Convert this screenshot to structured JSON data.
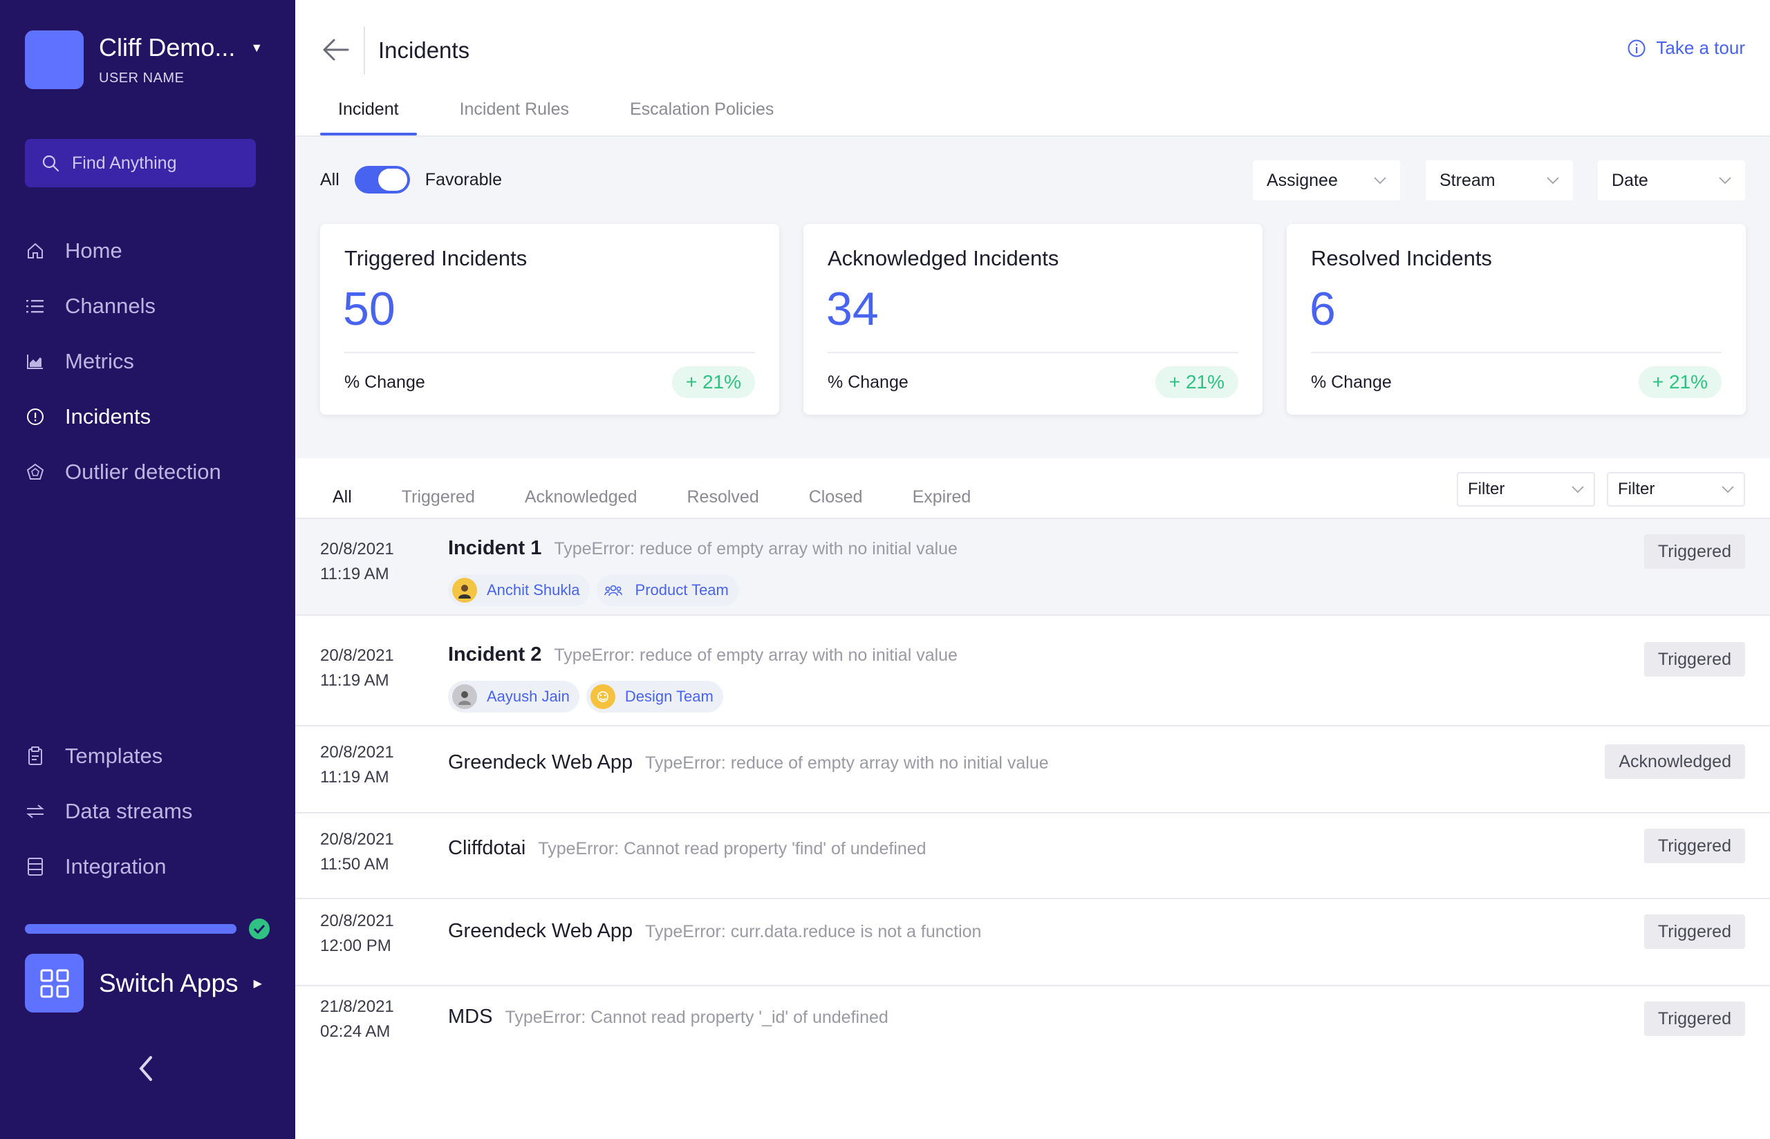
{
  "sidebar": {
    "workspace_name": "Cliff Demo...",
    "workspace_sub": "USER NAME",
    "search_label": "Find Anything",
    "nav_top": [
      {
        "label": "Home",
        "icon": "home-icon"
      },
      {
        "label": "Channels",
        "icon": "list-icon"
      },
      {
        "label": "Metrics",
        "icon": "chart-icon"
      },
      {
        "label": "Incidents",
        "icon": "alert-circle-icon",
        "active": true
      },
      {
        "label": "Outlier detection",
        "icon": "outlier-icon"
      }
    ],
    "nav_bottom": [
      {
        "label": "Templates",
        "icon": "template-icon"
      },
      {
        "label": "Data streams",
        "icon": "streams-icon"
      },
      {
        "label": "Integration",
        "icon": "integration-icon"
      }
    ],
    "setup_progress": 1.0,
    "switch_apps_label": "Switch Apps"
  },
  "header": {
    "title": "Incidents",
    "tour_label": "Take a tour",
    "tabs": [
      "Incident",
      "Incident Rules",
      "Escalation Policies"
    ],
    "active_tab": "Incident"
  },
  "filters": {
    "toggle_left": "All",
    "toggle_right": "Favorable",
    "toggle_on": true,
    "assignee": "Assignee",
    "stream": "Stream",
    "date": "Date"
  },
  "stats": [
    {
      "title": "Triggered Incidents",
      "value": "50",
      "change_label": "% Change",
      "change": "+ 21%"
    },
    {
      "title": "Acknowledged Incidents",
      "value": "34",
      "change_label": "% Change",
      "change": "+ 21%"
    },
    {
      "title": "Resolved Incidents",
      "value": "6",
      "change_label": "% Change",
      "change": "+ 21%"
    }
  ],
  "list": {
    "tabs": [
      "All",
      "Triggered",
      "Acknowledged",
      "Resolved",
      "Closed",
      "Expired"
    ],
    "active_tab": "All",
    "filter1": "Filter",
    "filter2": "Filter",
    "rows": [
      {
        "date": "20/8/2021",
        "time": "11:19 AM",
        "name": "Incident 1",
        "desc": "TypeError: reduce of empty array with no initial value",
        "status": "Triggered",
        "person": "Anchit Shukla",
        "team": "Product Team"
      },
      {
        "date": "20/8/2021",
        "time": "11:19 AM",
        "name": "Incident 2",
        "desc": "TypeError: reduce of empty array with no initial value",
        "status": "Triggered",
        "person": "Aayush Jain",
        "team": "Design Team"
      },
      {
        "date": "20/8/2021",
        "time": "11:19 AM",
        "name": "Greendeck Web App",
        "desc": "TypeError: reduce of empty array with no initial value",
        "status": "Acknowledged"
      },
      {
        "date": "20/8/2021",
        "time": "11:50 AM",
        "name": "Cliffdotai",
        "desc": "TypeError: Cannot read property 'find' of undefined",
        "status": "Triggered"
      },
      {
        "date": "20/8/2021",
        "time": "12:00 PM",
        "name": "Greendeck Web App",
        "desc": "TypeError: curr.data.reduce is not a function",
        "status": "Triggered"
      },
      {
        "date": "21/8/2021",
        "time": "02:24 AM",
        "name": "MDS",
        "desc": "TypeError: Cannot read property '_id' of undefined",
        "status": "Triggered"
      }
    ]
  },
  "colors": {
    "sidebar_bg": "#231463",
    "accent": "#4763f0",
    "success": "#2fc283"
  }
}
